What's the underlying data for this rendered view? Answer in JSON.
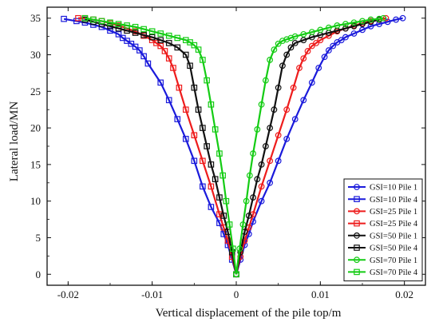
{
  "chart_data": {
    "type": "line",
    "title": "",
    "xlabel": "Vertical displacement of the pile top/m",
    "ylabel": "Lateral load/MN",
    "xlim": [
      -0.0225,
      0.0225
    ],
    "ylim": [
      -1.5,
      36.5
    ],
    "xticks": [
      -0.02,
      -0.01,
      0,
      0.01,
      0.02
    ],
    "xtick_labels": [
      "-0.02",
      "-0.01",
      "0",
      "0.01",
      "0.02"
    ],
    "yticks": [
      0,
      5,
      10,
      15,
      20,
      25,
      30,
      35
    ],
    "ytick_labels": [
      "0",
      "5",
      "10",
      "15",
      "20",
      "25",
      "30",
      "35"
    ],
    "grid": false,
    "legend_position": "bottom-right",
    "series": [
      {
        "name": "GSI=10 Pile 1",
        "color": "#1a1adb",
        "marker": "circle",
        "x": [
          0,
          0.0005,
          0.001,
          0.0015,
          0.002,
          0.003,
          0.004,
          0.005,
          0.006,
          0.007,
          0.008,
          0.009,
          0.0098,
          0.0105,
          0.011,
          0.0115,
          0.012,
          0.0125,
          0.013,
          0.014,
          0.015,
          0.016,
          0.017,
          0.018,
          0.019,
          0.0198
        ],
        "y": [
          0,
          2.0,
          4.0,
          5.5,
          7.2,
          10.0,
          12.5,
          15.5,
          18.5,
          21.2,
          23.8,
          26.2,
          28.2,
          29.7,
          30.6,
          31.2,
          31.7,
          32.0,
          32.4,
          32.9,
          33.4,
          33.9,
          34.2,
          34.5,
          34.8,
          35.0
        ]
      },
      {
        "name": "GSI=10 Pile 4",
        "color": "#1a1adb",
        "marker": "square",
        "x": [
          0,
          -0.0005,
          -0.001,
          -0.0015,
          -0.002,
          -0.003,
          -0.004,
          -0.005,
          -0.006,
          -0.007,
          -0.008,
          -0.009,
          -0.0105,
          -0.011,
          -0.0115,
          -0.012,
          -0.0125,
          -0.013,
          -0.0135,
          -0.014,
          -0.015,
          -0.016,
          -0.017,
          -0.018,
          -0.019,
          -0.0205
        ],
        "y": [
          0,
          2.0,
          4.0,
          5.5,
          7.0,
          9.2,
          12.0,
          15.5,
          18.5,
          21.2,
          23.8,
          26.2,
          28.8,
          29.8,
          30.6,
          31.1,
          31.5,
          31.9,
          32.3,
          32.8,
          33.3,
          33.8,
          34.1,
          34.4,
          34.6,
          34.9
        ]
      },
      {
        "name": "GSI=25 Pile 1",
        "color": "#ee1c1c",
        "marker": "circle",
        "x": [
          0,
          0.0005,
          0.001,
          0.0015,
          0.002,
          0.003,
          0.004,
          0.005,
          0.006,
          0.0068,
          0.0075,
          0.008,
          0.0085,
          0.009,
          0.0095,
          0.01,
          0.011,
          0.012,
          0.013,
          0.014,
          0.015,
          0.016,
          0.017,
          0.0178
        ],
        "y": [
          0,
          2.4,
          4.6,
          6.4,
          8.2,
          12.0,
          15.5,
          19.0,
          22.5,
          25.5,
          28.2,
          29.5,
          30.5,
          31.2,
          31.6,
          32.0,
          32.6,
          33.2,
          33.6,
          34.0,
          34.3,
          34.6,
          34.8,
          35.0
        ]
      },
      {
        "name": "GSI=25 Pile 4",
        "color": "#ee1c1c",
        "marker": "square",
        "x": [
          0,
          -0.0005,
          -0.001,
          -0.0015,
          -0.002,
          -0.003,
          -0.004,
          -0.005,
          -0.006,
          -0.0068,
          -0.0075,
          -0.008,
          -0.0085,
          -0.009,
          -0.0095,
          -0.01,
          -0.011,
          -0.012,
          -0.013,
          -0.014,
          -0.015,
          -0.016,
          -0.017,
          -0.018,
          -0.0188
        ],
        "y": [
          0,
          2.4,
          4.6,
          6.4,
          8.2,
          12.0,
          15.5,
          19.0,
          22.5,
          25.5,
          28.2,
          29.5,
          30.5,
          31.2,
          31.6,
          32.0,
          32.6,
          33.2,
          33.6,
          34.0,
          34.3,
          34.6,
          34.8,
          35.0,
          35.0
        ]
      },
      {
        "name": "GSI=50 Pile 1",
        "color": "#111111",
        "marker": "circle",
        "x": [
          0,
          0.0005,
          0.001,
          0.0015,
          0.002,
          0.0025,
          0.003,
          0.0035,
          0.004,
          0.0045,
          0.005,
          0.0055,
          0.006,
          0.0065,
          0.007,
          0.008,
          0.009,
          0.01,
          0.011,
          0.012,
          0.013,
          0.014,
          0.015,
          0.016,
          0.017
        ],
        "y": [
          0,
          3.0,
          5.8,
          8.0,
          10.5,
          13.0,
          15.0,
          17.5,
          20.0,
          22.5,
          25.5,
          28.5,
          30.0,
          31.0,
          31.6,
          32.0,
          32.4,
          32.7,
          33.0,
          33.3,
          33.6,
          33.9,
          34.2,
          34.5,
          34.8
        ]
      },
      {
        "name": "GSI=50 Pile 4",
        "color": "#111111",
        "marker": "square",
        "x": [
          0,
          -0.0005,
          -0.001,
          -0.0015,
          -0.002,
          -0.0025,
          -0.003,
          -0.0035,
          -0.004,
          -0.0045,
          -0.005,
          -0.0055,
          -0.006,
          -0.007,
          -0.008,
          -0.009,
          -0.01,
          -0.011,
          -0.012,
          -0.013,
          -0.014,
          -0.015,
          -0.016,
          -0.017,
          -0.018
        ],
        "y": [
          0,
          3.0,
          5.8,
          8.0,
          10.5,
          13.0,
          15.0,
          17.5,
          20.0,
          22.5,
          25.5,
          28.5,
          30.0,
          31.0,
          31.6,
          32.0,
          32.4,
          32.7,
          33.0,
          33.3,
          33.6,
          33.9,
          34.2,
          34.5,
          34.8
        ]
      },
      {
        "name": "GSI=70 Pile 1",
        "color": "#14cc14",
        "marker": "circle",
        "x": [
          0,
          0.0004,
          0.0008,
          0.0012,
          0.0016,
          0.002,
          0.0025,
          0.003,
          0.0035,
          0.004,
          0.0045,
          0.005,
          0.0055,
          0.006,
          0.0065,
          0.007,
          0.008,
          0.009,
          0.01,
          0.011,
          0.012,
          0.013,
          0.014,
          0.015,
          0.016,
          0.017,
          0.0175
        ],
        "y": [
          0,
          3.5,
          6.8,
          10.0,
          13.5,
          16.5,
          19.8,
          23.2,
          26.5,
          29.3,
          30.7,
          31.5,
          31.9,
          32.1,
          32.3,
          32.5,
          32.8,
          33.1,
          33.4,
          33.7,
          34.0,
          34.2,
          34.4,
          34.6,
          34.8,
          34.9,
          35.0
        ]
      },
      {
        "name": "GSI=70 Pile 4",
        "color": "#14cc14",
        "marker": "square",
        "x": [
          0,
          -0.0004,
          -0.0008,
          -0.0012,
          -0.0016,
          -0.002,
          -0.0025,
          -0.003,
          -0.0035,
          -0.004,
          -0.0045,
          -0.005,
          -0.0055,
          -0.006,
          -0.007,
          -0.008,
          -0.009,
          -0.01,
          -0.011,
          -0.012,
          -0.013,
          -0.014,
          -0.015,
          -0.016,
          -0.017,
          -0.018
        ],
        "y": [
          0,
          3.5,
          6.8,
          10.0,
          13.5,
          16.5,
          19.8,
          23.2,
          26.5,
          29.3,
          30.7,
          31.3,
          31.7,
          32.0,
          32.3,
          32.6,
          32.9,
          33.2,
          33.5,
          33.8,
          34.0,
          34.2,
          34.4,
          34.6,
          34.8,
          35.0
        ]
      }
    ]
  }
}
